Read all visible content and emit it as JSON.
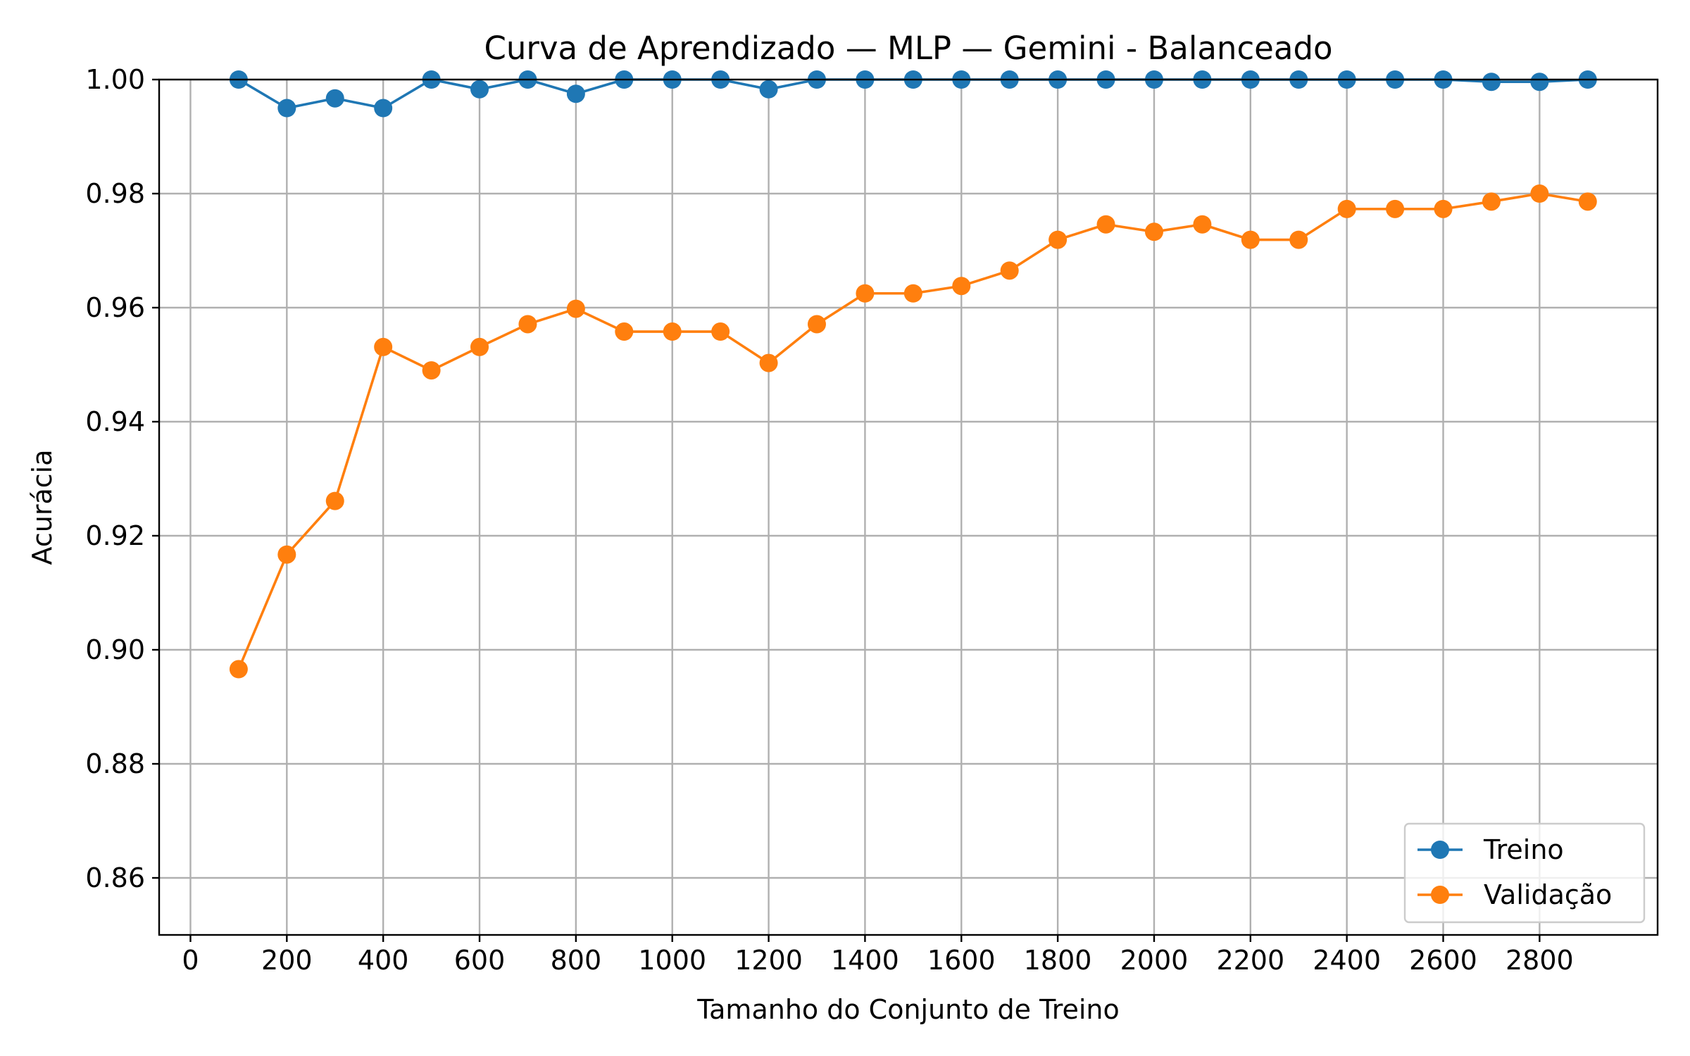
{
  "chart_data": {
    "type": "line",
    "title": "Curva de Aprendizado — MLP — Gemini - Balanceado",
    "xlabel": "Tamanho do Conjunto de Treino",
    "ylabel": "Acurácia",
    "xlim": [
      -65,
      3045
    ],
    "ylim": [
      0.85,
      1.0
    ],
    "xticks": [
      0,
      200,
      400,
      600,
      800,
      1000,
      1200,
      1400,
      1600,
      1800,
      2000,
      2200,
      2400,
      2600,
      2800
    ],
    "yticks": [
      0.86,
      0.88,
      0.9,
      0.92,
      0.94,
      0.96,
      0.98,
      1.0
    ],
    "ytick_labels": [
      "0.86",
      "0.88",
      "0.90",
      "0.92",
      "0.94",
      "0.96",
      "0.98",
      "1.00"
    ],
    "grid": true,
    "legend_position": "bottom-right",
    "x": [
      100,
      200,
      300,
      400,
      500,
      600,
      700,
      800,
      900,
      1000,
      1100,
      1200,
      1300,
      1400,
      1500,
      1600,
      1700,
      1800,
      1900,
      2000,
      2100,
      2200,
      2300,
      2400,
      2500,
      2600,
      2700,
      2800,
      2900
    ],
    "series": [
      {
        "name": "Treino",
        "color": "#1f77b4",
        "values": [
          1.0,
          0.995,
          0.9967,
          0.995,
          1.0,
          0.9983,
          1.0,
          0.9975,
          1.0,
          1.0,
          1.0,
          0.9983,
          1.0,
          1.0,
          1.0,
          1.0,
          1.0,
          1.0,
          1.0,
          1.0,
          1.0,
          1.0,
          1.0,
          1.0,
          1.0,
          1.0,
          0.9996,
          0.9996,
          1.0
        ]
      },
      {
        "name": "Validação",
        "color": "#ff7f0e",
        "values": [
          0.8966,
          0.9167,
          0.9261,
          0.9531,
          0.949,
          0.9531,
          0.9571,
          0.9598,
          0.9558,
          0.9558,
          0.9558,
          0.9503,
          0.9571,
          0.9625,
          0.9625,
          0.9638,
          0.9665,
          0.9719,
          0.9746,
          0.9733,
          0.9746,
          0.9719,
          0.9719,
          0.9773,
          0.9773,
          0.9773,
          0.9786,
          0.98,
          0.9786
        ]
      }
    ]
  }
}
